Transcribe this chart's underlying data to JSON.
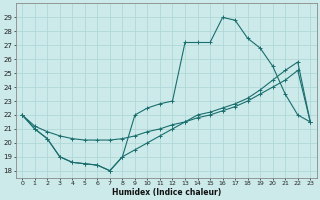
{
  "xlabel": "Humidex (Indice chaleur)",
  "bg_color": "#cceaea",
  "grid_color": "#b0d8d8",
  "line_color": "#1a6e6e",
  "line1_x": [
    0,
    1,
    2,
    3,
    4,
    5,
    6,
    7,
    8,
    9,
    10,
    11,
    12,
    13,
    14,
    15,
    16,
    17,
    18,
    19,
    20,
    21,
    22,
    23
  ],
  "line1_y": [
    22,
    21,
    20.3,
    19,
    18.6,
    18.5,
    18.4,
    18.0,
    19.0,
    22.0,
    22.5,
    22.8,
    23.0,
    27.2,
    27.2,
    27.2,
    29.0,
    28.8,
    27.5,
    26.8,
    25.5,
    23.5,
    22.0,
    21.5
  ],
  "line2_x": [
    0,
    1,
    2,
    3,
    4,
    5,
    6,
    7,
    8,
    9,
    10,
    11,
    12,
    13,
    14,
    15,
    16,
    17,
    18,
    19,
    20,
    21,
    22,
    23
  ],
  "line2_y": [
    22.0,
    21.2,
    20.8,
    20.5,
    20.3,
    20.2,
    20.2,
    20.2,
    20.3,
    20.5,
    20.8,
    21.0,
    21.3,
    21.5,
    21.8,
    22.0,
    22.3,
    22.6,
    23.0,
    23.5,
    24.0,
    24.5,
    25.2,
    21.5
  ],
  "line3_x": [
    0,
    1,
    2,
    3,
    4,
    5,
    6,
    7,
    8,
    9,
    10,
    11,
    12,
    13,
    14,
    15,
    16,
    17,
    18,
    19,
    20,
    21,
    22,
    23
  ],
  "line3_y": [
    22,
    21,
    20.3,
    19,
    18.6,
    18.5,
    18.4,
    18.0,
    19.0,
    19.5,
    20.0,
    20.5,
    21.0,
    21.5,
    22.0,
    22.2,
    22.5,
    22.8,
    23.2,
    23.8,
    24.5,
    25.2,
    25.8,
    21.5
  ],
  "xlim": [
    -0.5,
    23.5
  ],
  "ylim": [
    17.5,
    30.0
  ],
  "yticks": [
    18,
    19,
    20,
    21,
    22,
    23,
    24,
    25,
    26,
    27,
    28,
    29
  ],
  "xticks": [
    0,
    1,
    2,
    3,
    4,
    5,
    6,
    7,
    8,
    9,
    10,
    11,
    12,
    13,
    14,
    15,
    16,
    17,
    18,
    19,
    20,
    21,
    22,
    23
  ]
}
